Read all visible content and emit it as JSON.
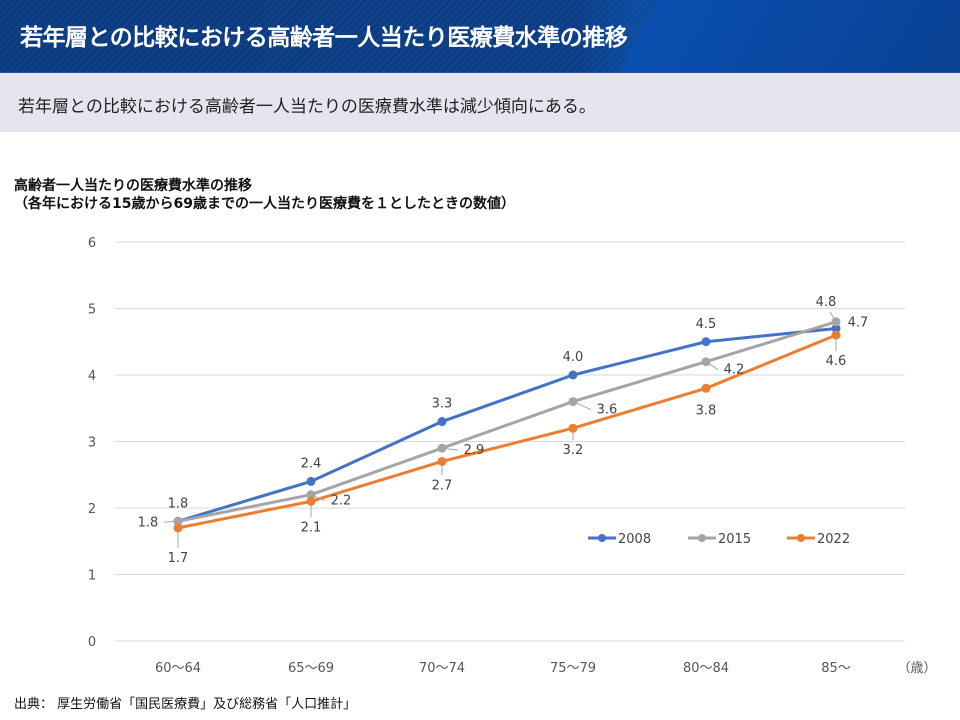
{
  "header": {
    "title": "若年層との比較における高齢者一人当たり医療費水準の推移"
  },
  "summary": {
    "text": "若年層との比較における高齢者一人当たりの医療費水準は減少傾向にある。"
  },
  "footer": {
    "source": "出典： 厚生労働省「国民医療費」及び総務省「人口推計」"
  },
  "chart_data": {
    "type": "line",
    "title": "高齢者一人当たりの医療費水準の推移",
    "subtitle": "（各年における15歳から69歳までの一人当たり医療費を１としたときの数値）",
    "xlabel": "（歳）",
    "ylabel": "",
    "categories": [
      "60～64",
      "65～69",
      "70～74",
      "75～79",
      "80～84",
      "85～"
    ],
    "ylim": [
      0,
      6
    ],
    "yticks": [
      0,
      1,
      2,
      3,
      4,
      5,
      6
    ],
    "grid": true,
    "legend_position": "bottom-right",
    "series": [
      {
        "name": "2008",
        "color": "#4472c4",
        "values": [
          1.8,
          2.4,
          3.3,
          4.0,
          4.5,
          4.7
        ]
      },
      {
        "name": "2015",
        "color": "#a5a5a5",
        "values": [
          1.8,
          2.2,
          2.9,
          3.6,
          4.2,
          4.8
        ]
      },
      {
        "name": "2022",
        "color": "#ed7d31",
        "values": [
          1.7,
          2.1,
          2.7,
          3.2,
          3.8,
          4.6
        ]
      }
    ]
  }
}
